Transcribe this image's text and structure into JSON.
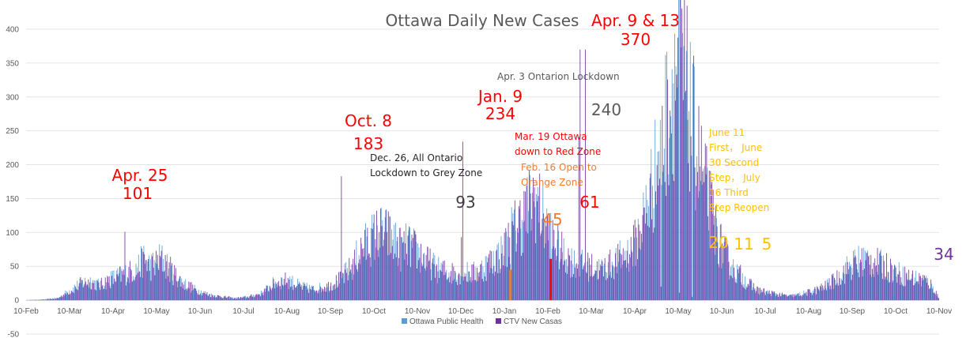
{
  "chart_data": {
    "type": "bar",
    "title": "Ottawa Daily New Cases",
    "xlabel": "",
    "ylabel": "",
    "ylim": [
      -50,
      400
    ],
    "yticks": [
      -50,
      0,
      50,
      100,
      150,
      200,
      250,
      300,
      350,
      400
    ],
    "x_tick_labels": [
      "10-Feb",
      "10-Mar",
      "10-Apr",
      "10-May",
      "10-Jun",
      "10-Jul",
      "10-Aug",
      "10-Sep",
      "10-Oct",
      "10-Nov",
      "10-Dec",
      "10-Jan",
      "10-Feb",
      "10-Mar",
      "10-Apr",
      "10-May",
      "10-Jun",
      "10-Jul",
      "10-Aug",
      "10-Sep",
      "10-Oct",
      "10-Nov"
    ],
    "grid": true,
    "legend_position": "bottom",
    "series": [
      {
        "name": "Ottawa Public Health",
        "color": "#5B9BD5"
      },
      {
        "name": "CTV New Casas",
        "color": "#7030A0"
      }
    ],
    "anchor_points": [
      [
        0,
        0
      ],
      [
        14,
        1
      ],
      [
        24,
        3
      ],
      [
        34,
        15
      ],
      [
        42,
        25
      ],
      [
        49,
        28
      ],
      [
        56,
        22
      ],
      [
        63,
        30
      ],
      [
        70,
        35
      ],
      [
        77,
        40
      ],
      [
        84,
        45
      ],
      [
        90,
        60
      ],
      [
        95,
        50
      ],
      [
        100,
        55
      ],
      [
        103,
        62
      ],
      [
        106,
        55
      ],
      [
        112,
        40
      ],
      [
        120,
        25
      ],
      [
        130,
        15
      ],
      [
        140,
        8
      ],
      [
        150,
        5
      ],
      [
        160,
        3
      ],
      [
        170,
        5
      ],
      [
        180,
        10
      ],
      [
        190,
        25
      ],
      [
        200,
        30
      ],
      [
        210,
        20
      ],
      [
        220,
        16
      ],
      [
        230,
        20
      ],
      [
        240,
        30
      ],
      [
        250,
        50
      ],
      [
        255,
        70
      ],
      [
        262,
        85
      ],
      [
        270,
        100
      ],
      [
        277,
        95
      ],
      [
        282,
        85
      ],
      [
        287,
        75
      ],
      [
        292,
        80
      ],
      [
        297,
        75
      ],
      [
        305,
        60
      ],
      [
        315,
        45
      ],
      [
        325,
        40
      ],
      [
        335,
        40
      ],
      [
        345,
        40
      ],
      [
        355,
        55
      ],
      [
        365,
        70
      ],
      [
        372,
        100
      ],
      [
        380,
        120
      ],
      [
        386,
        140
      ],
      [
        390,
        150
      ],
      [
        396,
        120
      ],
      [
        403,
        90
      ],
      [
        410,
        70
      ],
      [
        420,
        55
      ],
      [
        430,
        50
      ],
      [
        440,
        45
      ],
      [
        450,
        55
      ],
      [
        458,
        65
      ],
      [
        464,
        75
      ],
      [
        470,
        100
      ],
      [
        476,
        140
      ],
      [
        481,
        180
      ],
      [
        486,
        220
      ],
      [
        490,
        260
      ],
      [
        494,
        300
      ],
      [
        497,
        330
      ],
      [
        500,
        345
      ],
      [
        503,
        330
      ],
      [
        507,
        290
      ],
      [
        512,
        240
      ],
      [
        517,
        190
      ],
      [
        522,
        150
      ],
      [
        527,
        110
      ],
      [
        532,
        80
      ],
      [
        537,
        60
      ],
      [
        542,
        45
      ],
      [
        548,
        35
      ],
      [
        553,
        25
      ],
      [
        560,
        15
      ],
      [
        566,
        12
      ],
      [
        572,
        10
      ],
      [
        578,
        8
      ],
      [
        585,
        6
      ],
      [
        592,
        8
      ],
      [
        600,
        12
      ],
      [
        610,
        18
      ],
      [
        620,
        30
      ],
      [
        628,
        45
      ],
      [
        635,
        55
      ],
      [
        642,
        60
      ],
      [
        650,
        55
      ],
      [
        658,
        50
      ],
      [
        666,
        42
      ],
      [
        674,
        35
      ],
      [
        681,
        32
      ],
      [
        688,
        30
      ],
      [
        692,
        25
      ],
      [
        696,
        15
      ],
      [
        700,
        0
      ]
    ],
    "spike_values": [
      {
        "day": 75,
        "value": 101
      },
      {
        "day": 241,
        "value": 183
      },
      {
        "day": 333,
        "value": 93
      },
      {
        "day": 334,
        "value": 234
      },
      {
        "day": 371,
        "value": 45
      },
      {
        "day": 402,
        "value": 61
      },
      {
        "day": 423,
        "value": 240
      },
      {
        "day": 424,
        "value": 370
      },
      {
        "day": 428,
        "value": 370
      },
      {
        "day": 486,
        "value": 20
      },
      {
        "day": 500,
        "value": 11
      },
      {
        "day": 510,
        "value": 5
      },
      {
        "day": 638,
        "value": 34
      }
    ],
    "highlight_bars": [
      {
        "day": 371,
        "value": 45,
        "color": "#ED7D31"
      },
      {
        "day": 402,
        "value": 61,
        "color": "#FF0000"
      }
    ]
  },
  "annotations": {
    "apr25": [
      "Apr. 25",
      "101"
    ],
    "oct8": [
      "Oct. 8",
      "183"
    ],
    "dec26": [
      "Dec. 26, All Ontario",
      "Lockdown to Grey Zone"
    ],
    "n93": "93",
    "jan9": [
      "Jan. 9",
      "234"
    ],
    "mar19": [
      "Mar. 19 Ottawa",
      "down to Red Zone"
    ],
    "feb16": [
      "Feb. 16 Open to",
      "Orange Zone"
    ],
    "n45": "45",
    "n61": "61",
    "apr3": "Apr. 3 Ontarion Lockdown",
    "n240": "240",
    "apr9": [
      "Apr. 9 & 13",
      "370"
    ],
    "june11": [
      "June 11",
      "First， June",
      "30 Second",
      "Step， July",
      "16 Third",
      "Step Reopen"
    ],
    "n20": "20",
    "n11": "11",
    "n5": "5",
    "n34": "34"
  },
  "colors": {
    "red": "#FF0000",
    "orange": "#ED7D31",
    "gold": "#FFC000",
    "gray": "#595959",
    "dark": "#262626",
    "purple": "#7030A0",
    "blue": "#5B9BD5"
  }
}
